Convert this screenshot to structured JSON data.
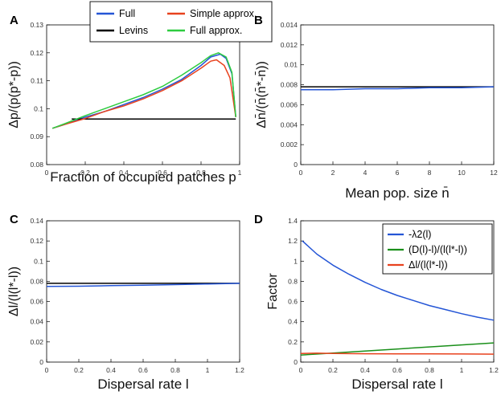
{
  "chart_data": [
    {
      "panel_label": "A",
      "type": "line",
      "xlabel": "Fraction of occupied patches p",
      "ylabel": "Δp/(p(p*-p))",
      "xlim": [
        0,
        1
      ],
      "ylim": [
        0.08,
        0.13
      ],
      "x_ticks": [
        "0",
        "0.2",
        "0.4",
        "0.6",
        "0.8",
        "1"
      ],
      "y_ticks": [
        "0.08",
        "0.09",
        "0.1",
        "0.11",
        "0.12",
        "0.13"
      ],
      "grid": false,
      "legend": {
        "placement": "top",
        "entries": [
          "Full",
          "Levins",
          "Simple approx.",
          "Full approx."
        ]
      },
      "series": [
        {
          "name": "Full",
          "color": "#2455d6",
          "x": [
            0.03,
            0.1,
            0.2,
            0.3,
            0.4,
            0.5,
            0.6,
            0.7,
            0.8,
            0.85,
            0.9,
            0.93,
            0.96,
            0.98
          ],
          "y": [
            0.093,
            0.0945,
            0.097,
            0.099,
            0.1015,
            0.104,
            0.107,
            0.1105,
            0.1155,
            0.1185,
            0.1195,
            0.118,
            0.1125,
            0.097
          ]
        },
        {
          "name": "Levins",
          "color": "#000000",
          "x": [
            0.13,
            0.98
          ],
          "y": [
            0.0963,
            0.0963
          ]
        },
        {
          "name": "Simple approx.",
          "color": "#e8421e",
          "x": [
            0.03,
            0.1,
            0.2,
            0.3,
            0.4,
            0.5,
            0.6,
            0.7,
            0.8,
            0.85,
            0.88,
            0.92,
            0.95,
            0.98
          ],
          "y": [
            0.093,
            0.0945,
            0.0965,
            0.099,
            0.101,
            0.1035,
            0.1065,
            0.11,
            0.1145,
            0.117,
            0.1175,
            0.1155,
            0.111,
            0.097
          ]
        },
        {
          "name": "Full approx.",
          "color": "#2ecc40",
          "x": [
            0.03,
            0.1,
            0.2,
            0.3,
            0.4,
            0.5,
            0.6,
            0.7,
            0.8,
            0.85,
            0.89,
            0.93,
            0.96,
            0.98
          ],
          "y": [
            0.093,
            0.0948,
            0.0975,
            0.1,
            0.1025,
            0.105,
            0.108,
            0.112,
            0.1165,
            0.119,
            0.12,
            0.1185,
            0.113,
            0.097
          ]
        }
      ]
    },
    {
      "panel_label": "B",
      "type": "line",
      "xlabel": "Mean pop. size n̄",
      "ylabel": "Δn̄/(n̄(n̄*-n̄))",
      "xlim": [
        0,
        12
      ],
      "ylim": [
        0,
        0.014
      ],
      "x_ticks": [
        "0",
        "2",
        "4",
        "6",
        "8",
        "10",
        "12"
      ],
      "y_ticks": [
        "0",
        "0.002",
        "0.004",
        "0.006",
        "0.008",
        "0.01",
        "0.012",
        "0.014"
      ],
      "grid": false,
      "series": [
        {
          "color": "#000000",
          "x": [
            0,
            12
          ],
          "y": [
            0.0078,
            0.0078
          ]
        },
        {
          "color": "#2455d6",
          "x": [
            0,
            2,
            4,
            6,
            8,
            10,
            12
          ],
          "y": [
            0.0075,
            0.0075,
            0.0076,
            0.0076,
            0.0077,
            0.0077,
            0.0078
          ]
        }
      ]
    },
    {
      "panel_label": "C",
      "type": "line",
      "xlabel": "Dispersal rate l",
      "ylabel": "Δl/(l(l*-l))",
      "xlim": [
        0,
        1.2
      ],
      "ylim": [
        0,
        0.14
      ],
      "x_ticks": [
        "0",
        "0.2",
        "0.4",
        "0.6",
        "0.8",
        "1",
        "1.2"
      ],
      "y_ticks": [
        "0",
        "0.02",
        "0.04",
        "0.06",
        "0.08",
        "0.1",
        "0.12",
        "0.14"
      ],
      "grid": false,
      "series": [
        {
          "color": "#000000",
          "x": [
            0,
            1.2
          ],
          "y": [
            0.078,
            0.078
          ]
        },
        {
          "color": "#2455d6",
          "x": [
            0,
            0.2,
            0.4,
            0.6,
            0.8,
            1.0,
            1.2
          ],
          "y": [
            0.075,
            0.0752,
            0.0757,
            0.0762,
            0.0768,
            0.0774,
            0.078
          ]
        }
      ]
    },
    {
      "panel_label": "D",
      "type": "line",
      "xlabel": "Dispersal rate l",
      "ylabel": "Factor",
      "xlim": [
        0,
        1.2
      ],
      "ylim": [
        0,
        1.4
      ],
      "x_ticks": [
        "0",
        "0.2",
        "0.4",
        "0.6",
        "0.8",
        "1",
        "1.2"
      ],
      "y_ticks": [
        "0",
        "0.2",
        "0.4",
        "0.6",
        "0.8",
        "1",
        "1.2",
        "1.4"
      ],
      "grid": false,
      "legend": {
        "placement": "top-right",
        "entries": [
          "-λ2(l)",
          "(D(l)-l)/(l(l*-l))",
          "Δl/(l(l*-l))"
        ]
      },
      "series": [
        {
          "name": "-λ2(l)",
          "color": "#2455d6",
          "x": [
            0.01,
            0.1,
            0.2,
            0.3,
            0.4,
            0.5,
            0.6,
            0.7,
            0.8,
            0.9,
            1.0,
            1.1,
            1.2
          ],
          "y": [
            1.2,
            1.07,
            0.96,
            0.87,
            0.79,
            0.72,
            0.66,
            0.61,
            0.56,
            0.52,
            0.48,
            0.445,
            0.415
          ]
        },
        {
          "name": "(D(l)-l)/(l(l*-l))",
          "color": "#1a8f1a",
          "x": [
            0,
            0.2,
            0.4,
            0.6,
            0.8,
            1.0,
            1.2
          ],
          "y": [
            0.07,
            0.09,
            0.11,
            0.13,
            0.15,
            0.17,
            0.19
          ]
        },
        {
          "name": "Δl/(l(l*-l))",
          "color": "#e8421e",
          "x": [
            0,
            0.1,
            0.2,
            0.4,
            0.6,
            0.8,
            1.0,
            1.2
          ],
          "y": [
            0.085,
            0.088,
            0.085,
            0.083,
            0.082,
            0.081,
            0.08,
            0.079
          ]
        }
      ]
    }
  ]
}
